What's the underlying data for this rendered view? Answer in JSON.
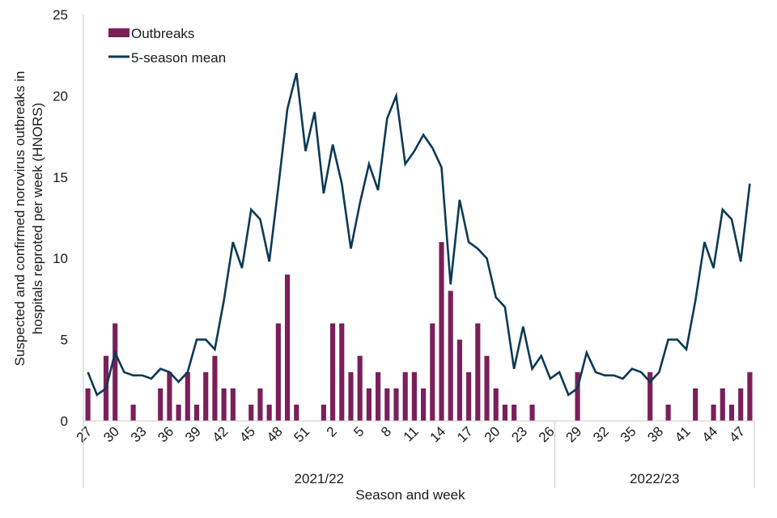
{
  "chart_data": {
    "type": "bar",
    "title": "",
    "xlabel": "Season and week",
    "ylabel": "Suspected and confirmed norovirus outbreaks in hospitals  reproted per week (HNORS)",
    "ylabel_lines": [
      "Suspected and confirmed norovirus outbreaks in",
      "hospitals  reproted per week (HNORS)"
    ],
    "ylim": [
      0,
      25
    ],
    "yticks": [
      0,
      5,
      10,
      15,
      20,
      25
    ],
    "grid": false,
    "legend_position": "top-left",
    "seasons": [
      {
        "name": "2021/22",
        "weeks": [
          27,
          28,
          29,
          30,
          31,
          32,
          33,
          34,
          35,
          36,
          37,
          38,
          39,
          40,
          41,
          42,
          43,
          44,
          45,
          46,
          47,
          48,
          49,
          50,
          51,
          52,
          1,
          2,
          3,
          4,
          5,
          6,
          7,
          8,
          9,
          10,
          11,
          12,
          13,
          14,
          15,
          16,
          17,
          18,
          19,
          20,
          21,
          22,
          23,
          24,
          25,
          26
        ]
      },
      {
        "name": "2022/23",
        "weeks": [
          27,
          28,
          29,
          30,
          31,
          32,
          33,
          34,
          35,
          36,
          37,
          38,
          39,
          40,
          41,
          42,
          43,
          44,
          45,
          46,
          47,
          48
        ]
      }
    ],
    "xtick_labels": [
      "27",
      "30",
      "33",
      "36",
      "39",
      "42",
      "45",
      "48",
      "51",
      "2",
      "5",
      "8",
      "11",
      "14",
      "17",
      "20",
      "23",
      "26",
      "29",
      "32",
      "35",
      "38",
      "41",
      "44",
      "47"
    ],
    "xtick_every": 3,
    "series": [
      {
        "name": "Outbreaks",
        "type": "bar",
        "color": "#7B1F5A",
        "values": [
          2,
          0,
          4,
          6,
          0,
          1,
          0,
          0,
          2,
          3,
          1,
          3,
          1,
          3,
          4,
          2,
          2,
          0,
          1,
          2,
          1,
          6,
          9,
          1,
          0,
          0,
          1,
          6,
          6,
          3,
          4,
          2,
          3,
          2,
          2,
          3,
          3,
          2,
          6,
          11,
          8,
          5,
          3,
          6,
          4,
          2,
          1,
          1,
          0,
          1,
          0,
          0,
          0,
          0,
          3,
          0,
          0,
          0,
          0,
          0,
          0,
          0,
          3,
          0,
          1,
          0,
          0,
          2,
          0,
          1,
          2,
          1,
          2,
          3
        ]
      },
      {
        "name": "5-season mean",
        "type": "line",
        "color": "#0B3A55",
        "values": [
          3.0,
          1.6,
          2.0,
          4.2,
          3.0,
          2.8,
          2.8,
          2.6,
          3.2,
          3.0,
          2.4,
          3.0,
          5.0,
          5.0,
          4.4,
          7.4,
          11.0,
          9.4,
          13.0,
          12.4,
          9.8,
          14.4,
          19.2,
          21.4,
          16.6,
          19.0,
          14.0,
          17.0,
          14.6,
          10.6,
          13.4,
          15.8,
          14.2,
          18.6,
          20.0,
          15.8,
          16.6,
          17.6,
          16.8,
          15.6,
          8.4,
          13.6,
          11.0,
          10.6,
          10.0,
          7.6,
          7.0,
          3.2,
          5.8,
          3.2,
          4.0,
          2.6,
          3.0,
          1.6,
          2.0,
          4.2,
          3.0,
          2.8,
          2.8,
          2.6,
          3.2,
          3.0,
          2.4,
          3.0,
          5.0,
          5.0,
          4.4,
          7.4,
          11.0,
          9.4,
          13.0,
          12.4,
          9.8,
          14.6
        ]
      }
    ]
  },
  "legend": {
    "items": [
      {
        "label": "Outbreaks",
        "color": "#7B1F5A",
        "kind": "bar"
      },
      {
        "label": "5-season mean",
        "color": "#0B3A55",
        "kind": "line"
      }
    ]
  }
}
